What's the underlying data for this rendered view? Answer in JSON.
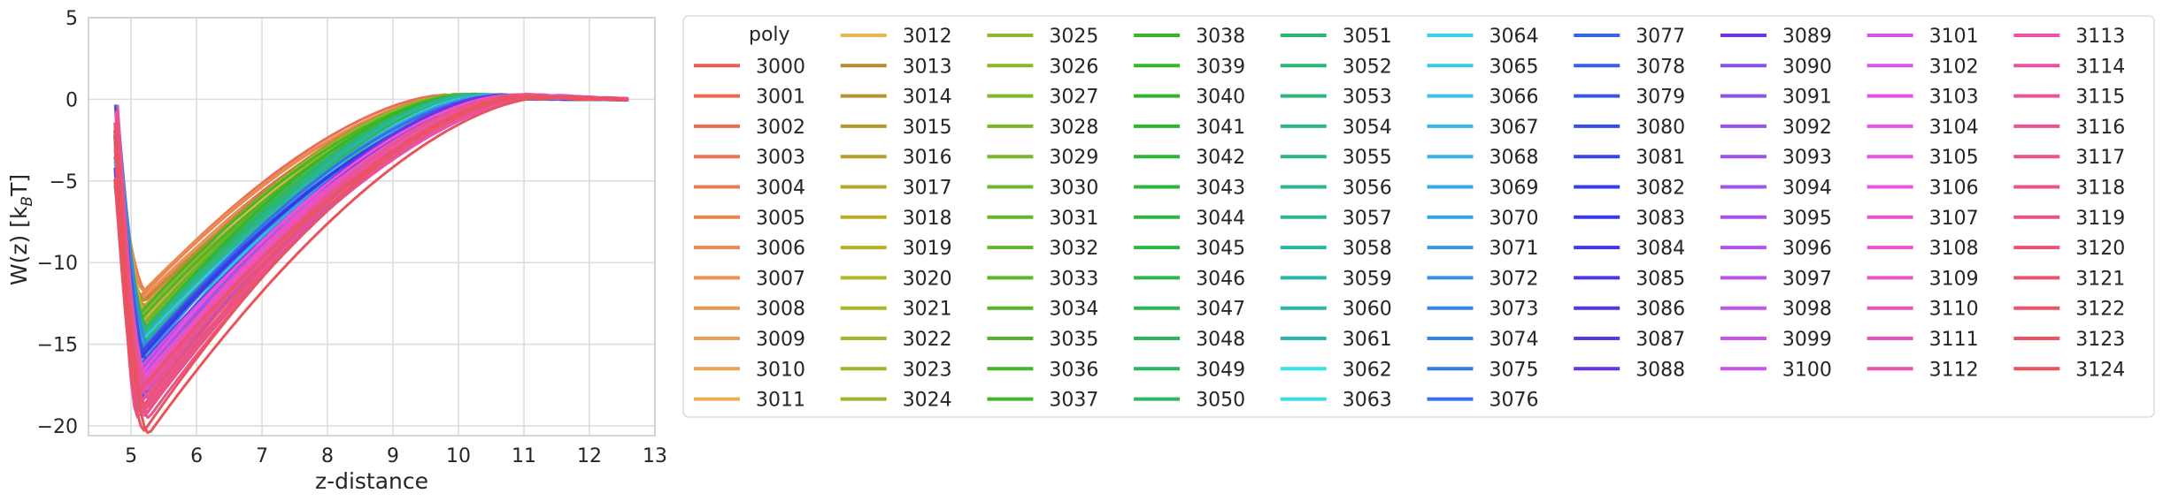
{
  "chart_data": {
    "type": "line",
    "xlabel": "z-distance",
    "ylabel_main": "W(z) [k",
    "ylabel_sub": "B",
    "ylabel_end": "T]",
    "xlim": [
      4.35,
      13.0
    ],
    "ylim": [
      -20.6,
      5
    ],
    "xticks": [
      5,
      6,
      7,
      8,
      9,
      10,
      11,
      12,
      13
    ],
    "yticks": [
      -20,
      -15,
      -10,
      -5,
      0,
      5
    ],
    "grid": true,
    "legend": {
      "title": "poly",
      "placement": "outside-right",
      "ncol": 10,
      "entries": [
        "3000",
        "3001",
        "3002",
        "3003",
        "3004",
        "3005",
        "3006",
        "3007",
        "3008",
        "3009",
        "3010",
        "3011",
        "3012",
        "3013",
        "3014",
        "3015",
        "3016",
        "3017",
        "3018",
        "3019",
        "3020",
        "3021",
        "3022",
        "3023",
        "3024",
        "3025",
        "3026",
        "3027",
        "3028",
        "3029",
        "3030",
        "3031",
        "3032",
        "3033",
        "3034",
        "3035",
        "3036",
        "3037",
        "3038",
        "3039",
        "3040",
        "3041",
        "3042",
        "3043",
        "3044",
        "3045",
        "3046",
        "3047",
        "3048",
        "3049",
        "3050",
        "3051",
        "3052",
        "3053",
        "3054",
        "3055",
        "3056",
        "3057",
        "3058",
        "3059",
        "3060",
        "3061",
        "3062",
        "3063",
        "3064",
        "3065",
        "3066",
        "3067",
        "3068",
        "3069",
        "3070",
        "3071",
        "3072",
        "3073",
        "3074",
        "3075",
        "3076",
        "3077",
        "3078",
        "3079",
        "3080",
        "3081",
        "3082",
        "3083",
        "3084",
        "3085",
        "3086",
        "3087",
        "3088",
        "3089",
        "3090",
        "3091",
        "3092",
        "3093",
        "3094",
        "3095",
        "3096",
        "3097",
        "3098",
        "3099",
        "3100",
        "3101",
        "3102",
        "3103",
        "3104",
        "3105",
        "3106",
        "3107",
        "3108",
        "3109",
        "3110",
        "3111",
        "3112",
        "3113",
        "3114",
        "3115",
        "3116",
        "3117",
        "3118",
        "3119",
        "3120",
        "3121",
        "3122",
        "3123",
        "3124"
      ]
    },
    "series_profile": {
      "z_start_range": [
        4.75,
        4.8
      ],
      "z_min_location_range": [
        5.1,
        5.3
      ],
      "min_value_range": [
        -20.5,
        -11.5
      ],
      "plateau_z_range": [
        9.5,
        11.5
      ],
      "z_end": 12.6,
      "end_value": 0
    }
  }
}
